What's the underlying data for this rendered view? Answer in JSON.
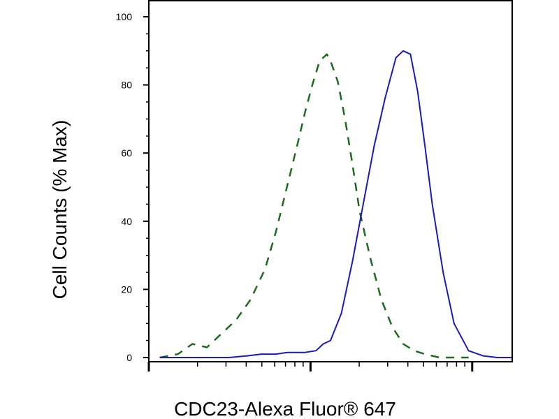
{
  "chart_data": {
    "type": "line",
    "title": "",
    "xlabel": "CDC23-Alexa Fluor® 647",
    "ylabel": "Cell Counts (% Max)",
    "xlim": [
      0,
      1
    ],
    "ylim": [
      0,
      100
    ],
    "yticks": [
      0,
      20,
      40,
      60,
      80,
      100
    ],
    "ytick_labels": [
      "0",
      "20",
      "40",
      "60",
      "80",
      "100"
    ],
    "x_scale": "log",
    "grid": false,
    "legend": "none",
    "series": [
      {
        "color": "#1f6b1f",
        "style": "dashed",
        "x": [
          0.03,
          0.08,
          0.12,
          0.16,
          0.2,
          0.24,
          0.28,
          0.32,
          0.35,
          0.38,
          0.41,
          0.43,
          0.45,
          0.47,
          0.49,
          0.5,
          0.52,
          0.54,
          0.56,
          0.58,
          0.61,
          0.64,
          0.67,
          0.7,
          0.73,
          0.76,
          0.8,
          0.84,
          0.88
        ],
        "y": [
          0,
          1,
          4,
          3,
          7,
          11,
          17,
          26,
          37,
          50,
          63,
          72,
          80,
          87,
          89,
          87,
          81,
          70,
          57,
          43,
          29,
          17,
          9,
          4,
          2,
          1,
          0,
          0,
          0
        ]
      },
      {
        "color": "#1a1ab8",
        "style": "solid",
        "x": [
          0.03,
          0.1,
          0.16,
          0.22,
          0.27,
          0.31,
          0.35,
          0.38,
          0.4,
          0.43,
          0.46,
          0.48,
          0.5,
          0.53,
          0.56,
          0.59,
          0.62,
          0.65,
          0.68,
          0.7,
          0.72,
          0.74,
          0.76,
          0.78,
          0.81,
          0.84,
          0.88,
          0.92,
          0.96,
          1.0
        ],
        "y": [
          0,
          0,
          0,
          0,
          0.5,
          1,
          1,
          1.5,
          1.5,
          1.5,
          2,
          4,
          5,
          13,
          28,
          45,
          62,
          76,
          88,
          90,
          89,
          78,
          62,
          45,
          25,
          10,
          2,
          0.5,
          0,
          0
        ]
      }
    ]
  }
}
